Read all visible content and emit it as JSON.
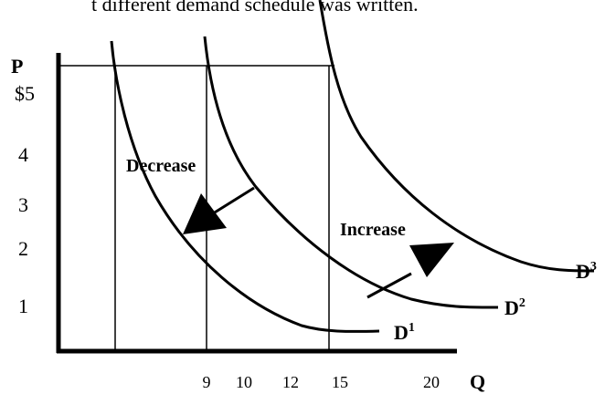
{
  "caption": "t different demand schedule was written.",
  "axes": {
    "y_label": "P",
    "x_label": "Q",
    "y_ticks": [
      "$5",
      "4",
      "3",
      "2",
      "1"
    ],
    "x_ticks": [
      "9",
      "10",
      "12",
      "15",
      "20"
    ]
  },
  "curves": [
    {
      "label": "D",
      "sup": "1"
    },
    {
      "label": "D",
      "sup": "2"
    },
    {
      "label": "D",
      "sup": "3"
    }
  ],
  "annotations": [
    "Decrease",
    "Increase"
  ]
}
